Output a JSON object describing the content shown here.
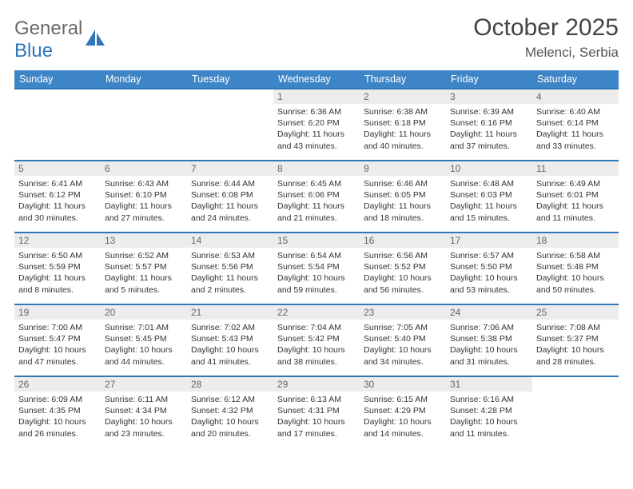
{
  "logo": {
    "word1": "General",
    "word2": "Blue"
  },
  "title": "October 2025",
  "subtitle": "Melenci, Serbia",
  "colors": {
    "header_bg": "#3d85c6",
    "border": "#2e77b8",
    "daynum_bg": "#ececec",
    "logo_gray": "#6a6a6a",
    "logo_blue": "#2e77b8"
  },
  "days_of_week": [
    "Sunday",
    "Monday",
    "Tuesday",
    "Wednesday",
    "Thursday",
    "Friday",
    "Saturday"
  ],
  "weeks": [
    [
      {
        "n": "",
        "lines": [
          "",
          "",
          "",
          ""
        ]
      },
      {
        "n": "",
        "lines": [
          "",
          "",
          "",
          ""
        ]
      },
      {
        "n": "",
        "lines": [
          "",
          "",
          "",
          ""
        ]
      },
      {
        "n": "1",
        "lines": [
          "Sunrise: 6:36 AM",
          "Sunset: 6:20 PM",
          "Daylight: 11 hours",
          "and 43 minutes."
        ]
      },
      {
        "n": "2",
        "lines": [
          "Sunrise: 6:38 AM",
          "Sunset: 6:18 PM",
          "Daylight: 11 hours",
          "and 40 minutes."
        ]
      },
      {
        "n": "3",
        "lines": [
          "Sunrise: 6:39 AM",
          "Sunset: 6:16 PM",
          "Daylight: 11 hours",
          "and 37 minutes."
        ]
      },
      {
        "n": "4",
        "lines": [
          "Sunrise: 6:40 AM",
          "Sunset: 6:14 PM",
          "Daylight: 11 hours",
          "and 33 minutes."
        ]
      }
    ],
    [
      {
        "n": "5",
        "lines": [
          "Sunrise: 6:41 AM",
          "Sunset: 6:12 PM",
          "Daylight: 11 hours",
          "and 30 minutes."
        ]
      },
      {
        "n": "6",
        "lines": [
          "Sunrise: 6:43 AM",
          "Sunset: 6:10 PM",
          "Daylight: 11 hours",
          "and 27 minutes."
        ]
      },
      {
        "n": "7",
        "lines": [
          "Sunrise: 6:44 AM",
          "Sunset: 6:08 PM",
          "Daylight: 11 hours",
          "and 24 minutes."
        ]
      },
      {
        "n": "8",
        "lines": [
          "Sunrise: 6:45 AM",
          "Sunset: 6:06 PM",
          "Daylight: 11 hours",
          "and 21 minutes."
        ]
      },
      {
        "n": "9",
        "lines": [
          "Sunrise: 6:46 AM",
          "Sunset: 6:05 PM",
          "Daylight: 11 hours",
          "and 18 minutes."
        ]
      },
      {
        "n": "10",
        "lines": [
          "Sunrise: 6:48 AM",
          "Sunset: 6:03 PM",
          "Daylight: 11 hours",
          "and 15 minutes."
        ]
      },
      {
        "n": "11",
        "lines": [
          "Sunrise: 6:49 AM",
          "Sunset: 6:01 PM",
          "Daylight: 11 hours",
          "and 11 minutes."
        ]
      }
    ],
    [
      {
        "n": "12",
        "lines": [
          "Sunrise: 6:50 AM",
          "Sunset: 5:59 PM",
          "Daylight: 11 hours",
          "and 8 minutes."
        ]
      },
      {
        "n": "13",
        "lines": [
          "Sunrise: 6:52 AM",
          "Sunset: 5:57 PM",
          "Daylight: 11 hours",
          "and 5 minutes."
        ]
      },
      {
        "n": "14",
        "lines": [
          "Sunrise: 6:53 AM",
          "Sunset: 5:56 PM",
          "Daylight: 11 hours",
          "and 2 minutes."
        ]
      },
      {
        "n": "15",
        "lines": [
          "Sunrise: 6:54 AM",
          "Sunset: 5:54 PM",
          "Daylight: 10 hours",
          "and 59 minutes."
        ]
      },
      {
        "n": "16",
        "lines": [
          "Sunrise: 6:56 AM",
          "Sunset: 5:52 PM",
          "Daylight: 10 hours",
          "and 56 minutes."
        ]
      },
      {
        "n": "17",
        "lines": [
          "Sunrise: 6:57 AM",
          "Sunset: 5:50 PM",
          "Daylight: 10 hours",
          "and 53 minutes."
        ]
      },
      {
        "n": "18",
        "lines": [
          "Sunrise: 6:58 AM",
          "Sunset: 5:48 PM",
          "Daylight: 10 hours",
          "and 50 minutes."
        ]
      }
    ],
    [
      {
        "n": "19",
        "lines": [
          "Sunrise: 7:00 AM",
          "Sunset: 5:47 PM",
          "Daylight: 10 hours",
          "and 47 minutes."
        ]
      },
      {
        "n": "20",
        "lines": [
          "Sunrise: 7:01 AM",
          "Sunset: 5:45 PM",
          "Daylight: 10 hours",
          "and 44 minutes."
        ]
      },
      {
        "n": "21",
        "lines": [
          "Sunrise: 7:02 AM",
          "Sunset: 5:43 PM",
          "Daylight: 10 hours",
          "and 41 minutes."
        ]
      },
      {
        "n": "22",
        "lines": [
          "Sunrise: 7:04 AM",
          "Sunset: 5:42 PM",
          "Daylight: 10 hours",
          "and 38 minutes."
        ]
      },
      {
        "n": "23",
        "lines": [
          "Sunrise: 7:05 AM",
          "Sunset: 5:40 PM",
          "Daylight: 10 hours",
          "and 34 minutes."
        ]
      },
      {
        "n": "24",
        "lines": [
          "Sunrise: 7:06 AM",
          "Sunset: 5:38 PM",
          "Daylight: 10 hours",
          "and 31 minutes."
        ]
      },
      {
        "n": "25",
        "lines": [
          "Sunrise: 7:08 AM",
          "Sunset: 5:37 PM",
          "Daylight: 10 hours",
          "and 28 minutes."
        ]
      }
    ],
    [
      {
        "n": "26",
        "lines": [
          "Sunrise: 6:09 AM",
          "Sunset: 4:35 PM",
          "Daylight: 10 hours",
          "and 26 minutes."
        ]
      },
      {
        "n": "27",
        "lines": [
          "Sunrise: 6:11 AM",
          "Sunset: 4:34 PM",
          "Daylight: 10 hours",
          "and 23 minutes."
        ]
      },
      {
        "n": "28",
        "lines": [
          "Sunrise: 6:12 AM",
          "Sunset: 4:32 PM",
          "Daylight: 10 hours",
          "and 20 minutes."
        ]
      },
      {
        "n": "29",
        "lines": [
          "Sunrise: 6:13 AM",
          "Sunset: 4:31 PM",
          "Daylight: 10 hours",
          "and 17 minutes."
        ]
      },
      {
        "n": "30",
        "lines": [
          "Sunrise: 6:15 AM",
          "Sunset: 4:29 PM",
          "Daylight: 10 hours",
          "and 14 minutes."
        ]
      },
      {
        "n": "31",
        "lines": [
          "Sunrise: 6:16 AM",
          "Sunset: 4:28 PM",
          "Daylight: 10 hours",
          "and 11 minutes."
        ]
      },
      {
        "n": "",
        "lines": [
          "",
          "",
          "",
          ""
        ]
      }
    ]
  ]
}
